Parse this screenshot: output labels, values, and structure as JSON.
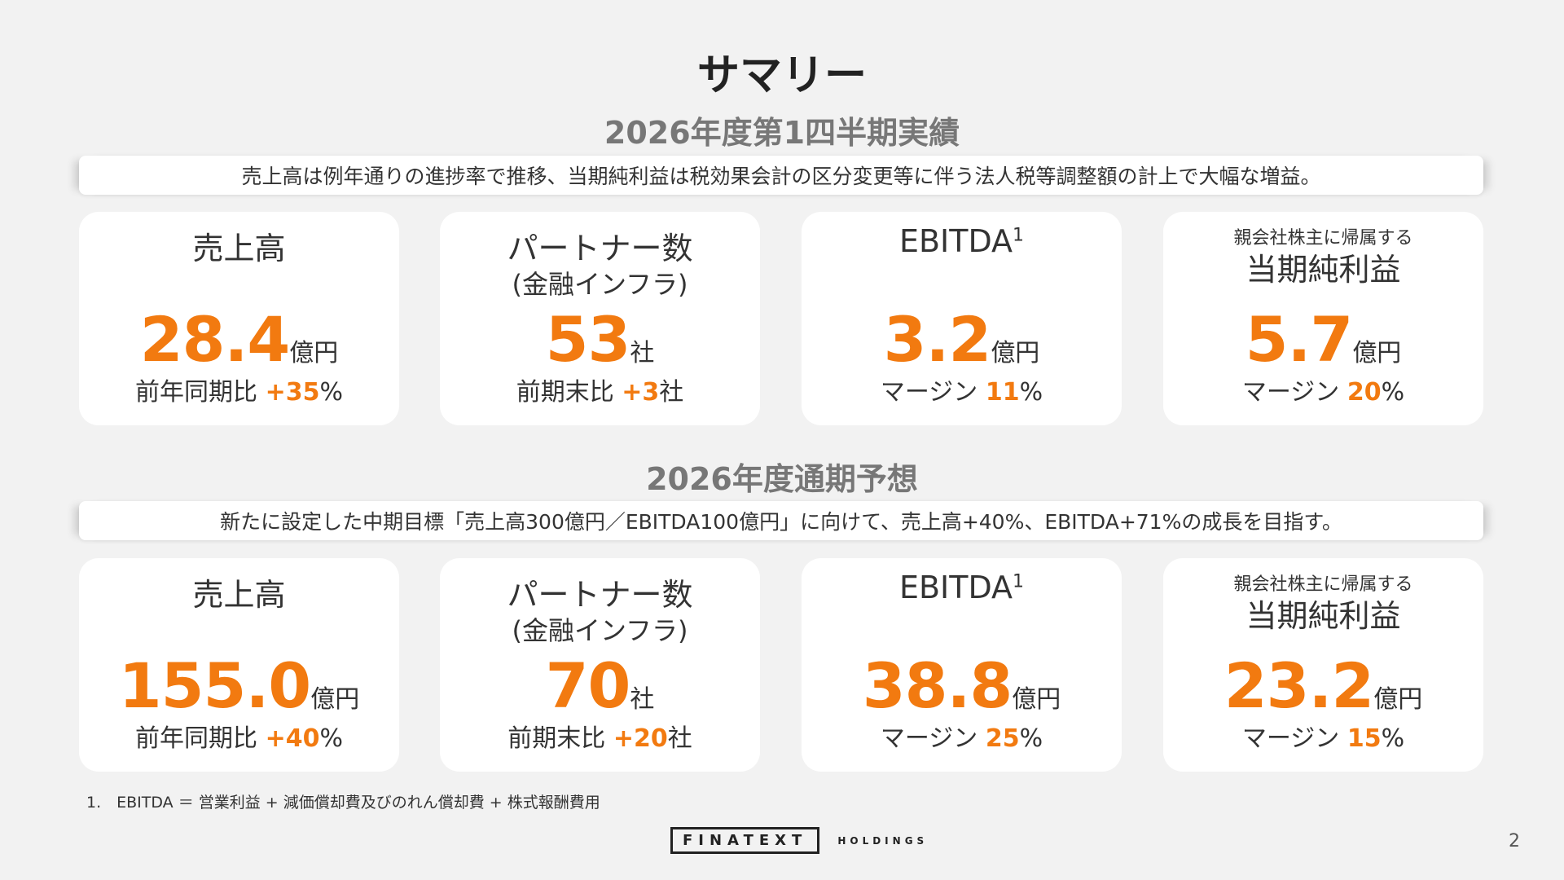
{
  "title": "サマリー",
  "actual": {
    "heading": "2026年度第1四半期実績",
    "summary": "売上高は例年通りの進捗率で推移、当期純利益は税効果会計の区分変更等に伴う法人税等調整額の計上で大幅な増益。",
    "cards": [
      {
        "label": "売上高",
        "value": "28.4",
        "unit": "億円",
        "sub_prefix": "前年同期比 ",
        "sub_value": "+35",
        "sub_suffix": "%"
      },
      {
        "label": "パートナー数",
        "label_sub": "(金融インフラ)",
        "value": "53",
        "unit": "社",
        "sub_prefix": "前期末比 ",
        "sub_value": "+3",
        "sub_suffix": "社"
      },
      {
        "label": "EBITDA",
        "label_sup": "1",
        "value": "3.2",
        "unit": "億円",
        "sub_prefix": "マージン ",
        "sub_value": "11",
        "sub_suffix": "%"
      },
      {
        "label_small": "親会社株主に帰属する",
        "label": "当期純利益",
        "value": "5.7",
        "unit": "億円",
        "sub_prefix": "マージン ",
        "sub_value": "20",
        "sub_suffix": "%"
      }
    ]
  },
  "forecast": {
    "heading": "2026年度通期予想",
    "summary": "新たに設定した中期目標「売上高300億円／EBITDA100億円」に向けて、売上高+40%、EBITDA+71%の成長を目指す。",
    "cards": [
      {
        "label": "売上高",
        "value": "155.0",
        "unit": "億円",
        "sub_prefix": "前年同期比 ",
        "sub_value": "+40",
        "sub_suffix": "%"
      },
      {
        "label": "パートナー数",
        "label_sub": "(金融インフラ)",
        "value": "70",
        "unit": "社",
        "sub_prefix": "前期末比 ",
        "sub_value": "+20",
        "sub_suffix": "社"
      },
      {
        "label": "EBITDA",
        "label_sup": "1",
        "value": "38.8",
        "unit": "億円",
        "sub_prefix": "マージン ",
        "sub_value": "25",
        "sub_suffix": "%"
      },
      {
        "label_small": "親会社株主に帰属する",
        "label": "当期純利益",
        "value": "23.2",
        "unit": "億円",
        "sub_prefix": "マージン ",
        "sub_value": "15",
        "sub_suffix": "%"
      }
    ]
  },
  "footnote": "1.　EBITDA ＝ 営業利益 + 減価償却費及びのれん償却費 + 株式報酬費用",
  "logo": {
    "main": "FINATEXT",
    "sub": "HOLDINGS"
  },
  "page_number": "2",
  "colors": {
    "accent": "#f27a10",
    "background": "#f2f2f2"
  }
}
